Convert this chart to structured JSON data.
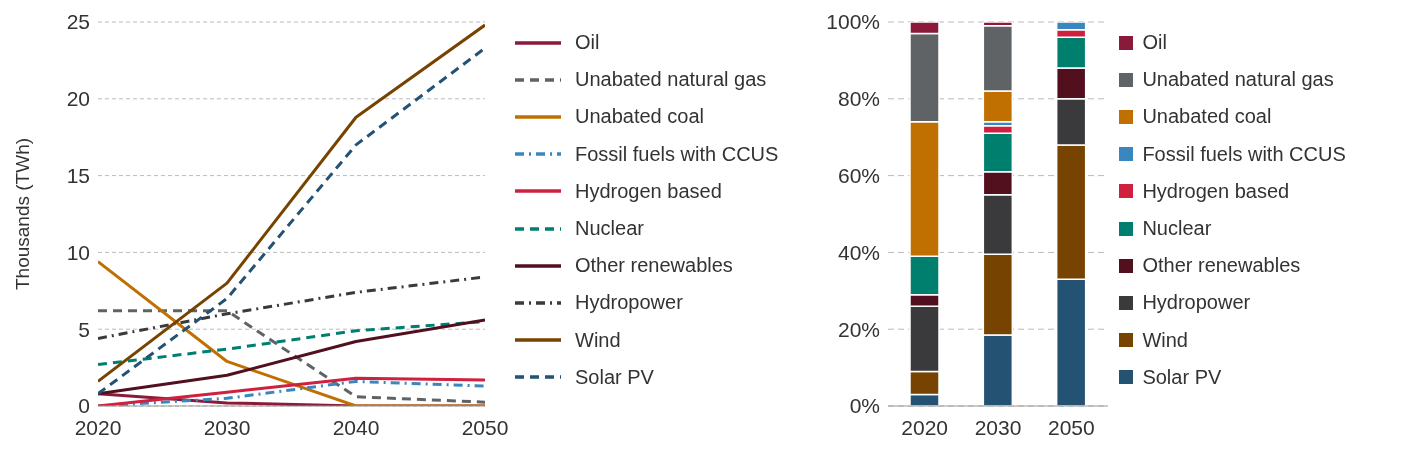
{
  "chart_data": [
    {
      "type": "line",
      "ylabel": "Thousands (TWh)",
      "x": [
        2020,
        2030,
        2040,
        2050
      ],
      "xlim": [
        2020,
        2050
      ],
      "xticks": [
        2020,
        2030,
        2040,
        2050
      ],
      "ylim": [
        0,
        25
      ],
      "yticks": [
        0,
        5,
        10,
        15,
        20,
        25
      ],
      "grid": "y",
      "legend": "right",
      "series": [
        {
          "name": "Oil",
          "color": "#8b1a3a",
          "line_style": "solid",
          "values": [
            0.8,
            0.2,
            0,
            0
          ]
        },
        {
          "name": "Unabated natural gas",
          "color": "#5f6366",
          "line_style": "dashed",
          "values": [
            6.2,
            6.2,
            0.6,
            0.25
          ]
        },
        {
          "name": "Unabated coal",
          "color": "#c07000",
          "line_style": "solid",
          "values": [
            9.4,
            2.9,
            0,
            0
          ]
        },
        {
          "name": "Fossil fuels with CCUS",
          "color": "#3a87c0",
          "line_style": "dashdot",
          "values": [
            0,
            0.5,
            1.6,
            1.3
          ]
        },
        {
          "name": "Hydrogen based",
          "color": "#d0203f",
          "line_style": "solid",
          "values": [
            0,
            0.9,
            1.8,
            1.7
          ]
        },
        {
          "name": "Nuclear",
          "color": "#007f6e",
          "line_style": "dashed",
          "values": [
            2.7,
            3.7,
            4.9,
            5.5
          ]
        },
        {
          "name": "Other renewables",
          "color": "#520f1e",
          "line_style": "solid",
          "values": [
            0.8,
            2.0,
            4.2,
            5.6
          ]
        },
        {
          "name": "Hydropower",
          "color": "#3a3a3c",
          "line_style": "dashdot",
          "values": [
            4.4,
            6.0,
            7.4,
            8.4
          ]
        },
        {
          "name": "Wind",
          "color": "#774300",
          "line_style": "solid",
          "values": [
            1.6,
            8.0,
            18.8,
            24.8
          ]
        },
        {
          "name": "Solar PV",
          "color": "#235273",
          "line_style": "dashed",
          "values": [
            0.8,
            7.0,
            17.0,
            23.3
          ]
        }
      ]
    },
    {
      "type": "bar",
      "stacked": true,
      "categories": [
        "2020",
        "2030",
        "2050"
      ],
      "ylim": [
        0,
        100
      ],
      "yticks": [
        {
          "value": 0,
          "label": "0%"
        },
        {
          "value": 20,
          "label": "20%"
        },
        {
          "value": 40,
          "label": "40%"
        },
        {
          "value": 60,
          "label": "60%"
        },
        {
          "value": 80,
          "label": "80%"
        },
        {
          "value": 100,
          "label": "100%"
        }
      ],
      "grid": "y",
      "legend": "right",
      "series": [
        {
          "name": "Solar PV",
          "color": "#235273",
          "values": [
            3,
            18.5,
            33
          ]
        },
        {
          "name": "Wind",
          "color": "#774300",
          "values": [
            6,
            21,
            35
          ]
        },
        {
          "name": "Hydropower",
          "color": "#3a3a3c",
          "values": [
            17,
            15.5,
            12
          ]
        },
        {
          "name": "Other renewables",
          "color": "#520f1e",
          "values": [
            3,
            6,
            8
          ]
        },
        {
          "name": "Nuclear",
          "color": "#007f6e",
          "values": [
            10,
            10,
            8
          ]
        },
        {
          "name": "Hydrogen based",
          "color": "#d0203f",
          "values": [
            0,
            2,
            2
          ]
        },
        {
          "name": "Fossil fuels with CCUS",
          "color": "#3a87c0",
          "values": [
            0,
            1,
            2
          ]
        },
        {
          "name": "Unabated coal",
          "color": "#c07000",
          "values": [
            35,
            8,
            0
          ]
        },
        {
          "name": "Unabated natural gas",
          "color": "#5f6366",
          "values": [
            23,
            17,
            0
          ]
        },
        {
          "name": "Oil",
          "color": "#8b1a3a",
          "values": [
            3,
            1,
            0
          ]
        }
      ]
    }
  ]
}
